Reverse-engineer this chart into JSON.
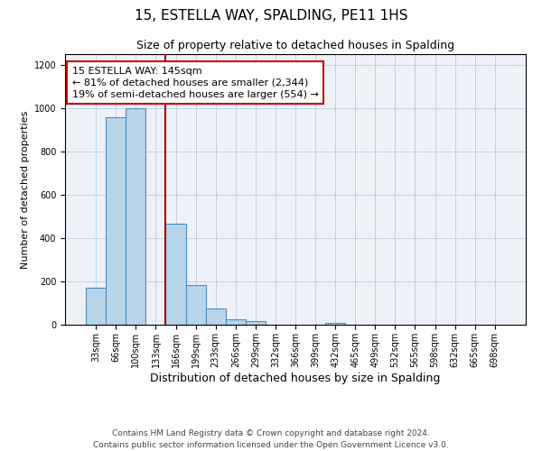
{
  "title": "15, ESTELLA WAY, SPALDING, PE11 1HS",
  "subtitle": "Size of property relative to detached houses in Spalding",
  "xlabel": "Distribution of detached houses by size in Spalding",
  "ylabel": "Number of detached properties",
  "bar_labels": [
    "33sqm",
    "66sqm",
    "100sqm",
    "133sqm",
    "166sqm",
    "199sqm",
    "233sqm",
    "266sqm",
    "299sqm",
    "332sqm",
    "366sqm",
    "399sqm",
    "432sqm",
    "465sqm",
    "499sqm",
    "532sqm",
    "565sqm",
    "598sqm",
    "632sqm",
    "665sqm",
    "698sqm"
  ],
  "bar_values": [
    170,
    960,
    1000,
    0,
    465,
    185,
    75,
    25,
    15,
    0,
    0,
    0,
    10,
    0,
    0,
    0,
    0,
    0,
    0,
    0,
    0
  ],
  "bar_color": "#b8d4e8",
  "bar_edge_color": "#4a90c4",
  "ylim": [
    0,
    1250
  ],
  "yticks": [
    0,
    200,
    400,
    600,
    800,
    1000,
    1200
  ],
  "property_label": "15 ESTELLA WAY: 145sqm",
  "annotation_line1": "← 81% of detached houses are smaller (2,344)",
  "annotation_line2": "19% of semi-detached houses are larger (554) →",
  "box_color": "#ffffff",
  "box_border_color": "#cc0000",
  "footer_line1": "Contains HM Land Registry data © Crown copyright and database right 2024.",
  "footer_line2": "Contains public sector information licensed under the Open Government Licence v3.0.",
  "background_color": "#eef2f8",
  "title_fontsize": 11,
  "subtitle_fontsize": 9,
  "xlabel_fontsize": 9,
  "ylabel_fontsize": 8,
  "tick_fontsize": 7,
  "annotation_fontsize": 8,
  "footer_fontsize": 6.5,
  "red_line_x": 3.5
}
